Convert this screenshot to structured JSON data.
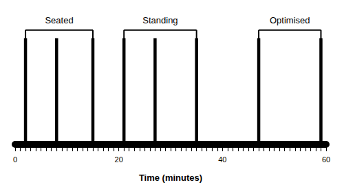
{
  "chart_data": {
    "type": "timeline",
    "xlabel": "Time (minutes)",
    "xlim": [
      0,
      60
    ],
    "xticks": [
      0,
      20,
      40,
      60
    ],
    "minor_xticks": [
      0,
      1,
      2,
      3,
      4,
      5,
      6,
      7,
      8,
      9,
      10,
      11,
      12,
      13,
      14,
      15,
      16,
      17,
      18,
      19,
      20,
      21,
      22,
      23,
      24,
      25,
      26,
      27,
      28,
      29,
      30,
      31,
      32,
      33,
      34,
      35,
      36,
      37,
      38,
      39,
      40,
      41,
      42,
      43,
      44,
      45,
      46,
      47,
      48,
      49,
      50,
      51,
      52,
      53,
      54,
      55,
      56,
      57,
      58,
      59,
      60
    ],
    "color": "#000000",
    "grid": false,
    "groups": [
      {
        "label": "Seated",
        "lines": [
          2,
          8,
          15
        ],
        "bracket_x": [
          2,
          15
        ]
      },
      {
        "label": "Standing",
        "lines": [
          21,
          27,
          35
        ],
        "bracket_x": [
          21,
          35
        ]
      },
      {
        "label": "Optimised",
        "lines": [
          47,
          59
        ],
        "bracket_x": [
          47,
          59
        ]
      }
    ]
  }
}
